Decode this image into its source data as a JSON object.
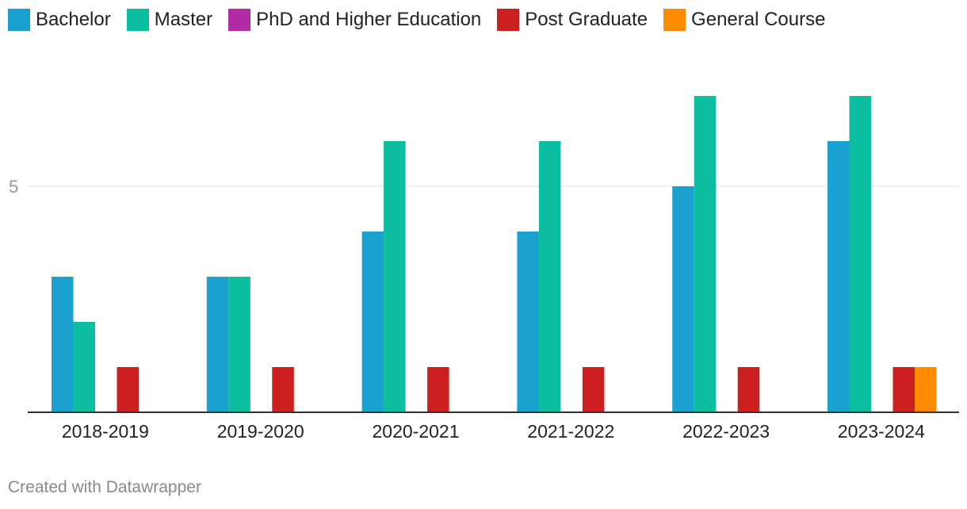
{
  "chart_data": {
    "type": "bar",
    "categories": [
      "2018-2019",
      "2019-2020",
      "2020-2021",
      "2021-2022",
      "2022-2023",
      "2023-2024"
    ],
    "series": [
      {
        "name": "Bachelor",
        "color": "#1aa1d0",
        "values": [
          3,
          3,
          4,
          4,
          5,
          6
        ]
      },
      {
        "name": "Master",
        "color": "#0bbea0",
        "values": [
          2,
          3,
          6,
          6,
          7,
          7
        ]
      },
      {
        "name": "PhD and Higher Education",
        "color": "#b22aa4",
        "values": [
          0,
          0,
          0,
          0,
          0,
          0
        ]
      },
      {
        "name": "Post Graduate",
        "color": "#cc1f1f",
        "values": [
          1,
          1,
          1,
          1,
          1,
          1
        ]
      },
      {
        "name": "General Course",
        "color": "#ff8c00",
        "values": [
          0,
          0,
          0,
          0,
          0,
          1
        ]
      }
    ],
    "y_ticks": [
      5
    ],
    "ylim": [
      0,
      7
    ],
    "grid": true,
    "legend": "top-left"
  },
  "footer": {
    "credit": "Created with Datawrapper"
  }
}
